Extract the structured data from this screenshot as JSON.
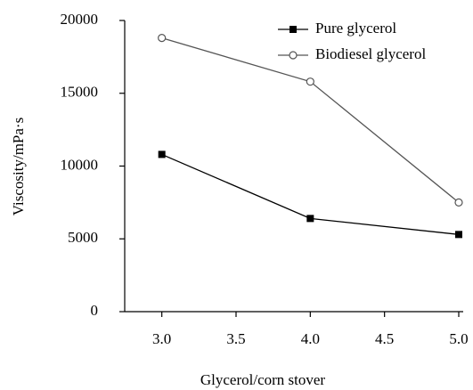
{
  "chart_data": {
    "type": "line",
    "x_label": "Glycerol/corn stover",
    "y_label": "Viscosity/mPa·s",
    "x": [
      3.0,
      4.0,
      5.0
    ],
    "series": [
      {
        "name": "Pure glycerol",
        "color": "#000000",
        "marker": "square",
        "values": [
          10800,
          6400,
          5300
        ]
      },
      {
        "name": "Biodiesel glycerol",
        "color": "#555555",
        "marker": "circle-open",
        "values": [
          18800,
          15800,
          7500
        ]
      }
    ],
    "xlim": [
      2.75,
      5.0
    ],
    "xticks": [
      {
        "value": 3,
        "label": "3.0"
      },
      {
        "value": 3.5,
        "label": "3.5"
      },
      {
        "value": 4,
        "label": "4.0"
      },
      {
        "value": 4.5,
        "label": "4.5"
      },
      {
        "value": 5,
        "label": "5.0"
      }
    ],
    "ylim": [
      0,
      20000
    ],
    "yticks": [
      0,
      5000,
      10000,
      15000,
      20000
    ],
    "grid": false,
    "legend": "top-right"
  }
}
